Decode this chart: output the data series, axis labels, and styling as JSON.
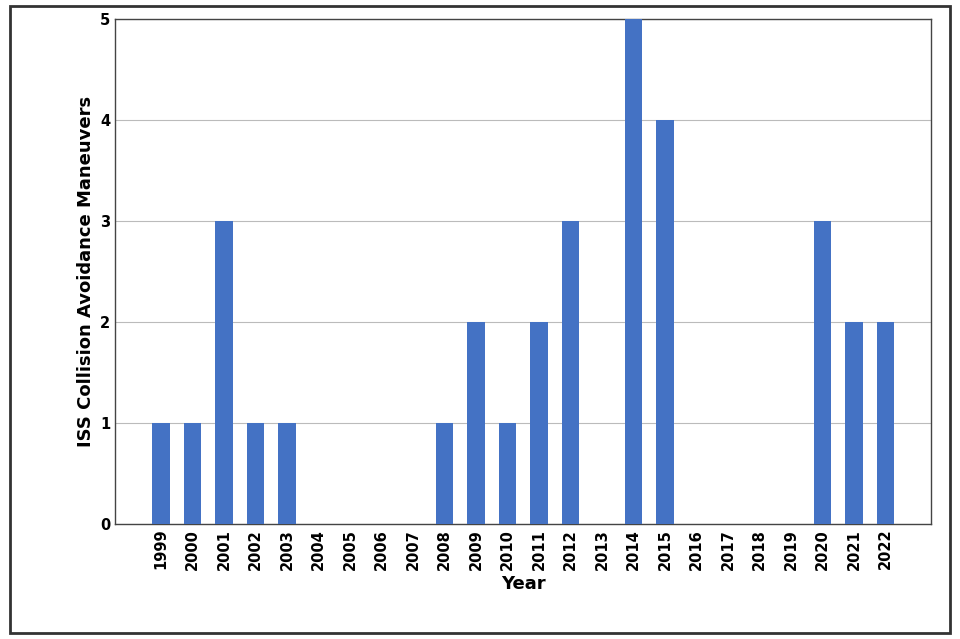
{
  "years": [
    1999,
    2000,
    2001,
    2002,
    2003,
    2004,
    2005,
    2006,
    2007,
    2008,
    2009,
    2010,
    2011,
    2012,
    2013,
    2014,
    2015,
    2016,
    2017,
    2018,
    2019,
    2020,
    2021,
    2022
  ],
  "values": [
    1,
    1,
    3,
    1,
    1,
    0,
    0,
    0,
    0,
    1,
    2,
    1,
    2,
    3,
    0,
    5,
    4,
    0,
    0,
    0,
    0,
    3,
    2,
    2
  ],
  "bar_color": "#4472C4",
  "xlabel": "Year",
  "ylabel": "ISS Collision Avoidance Maneuvers",
  "ylim": [
    0,
    5
  ],
  "yticks": [
    0,
    1,
    2,
    3,
    4,
    5
  ],
  "background_color": "#ffffff",
  "grid_color": "#bbbbbb",
  "bar_width": 0.55,
  "label_fontsize": 13,
  "tick_fontsize": 10.5,
  "outer_border_color": "#444444"
}
